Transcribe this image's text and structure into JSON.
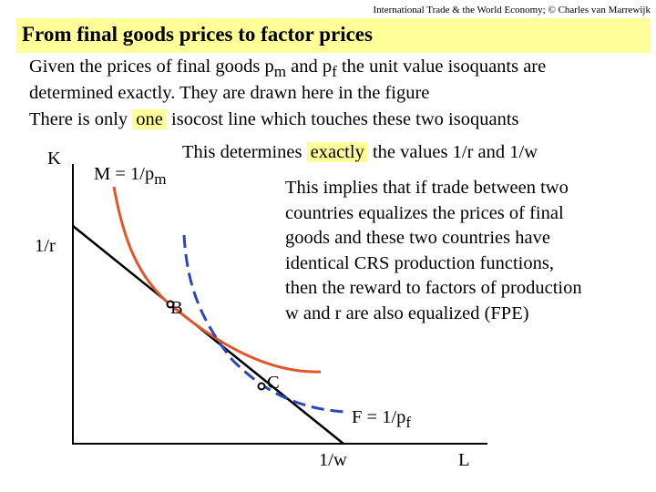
{
  "header": {
    "credit": "International Trade & the World Economy;  © Charles van Marrewijk",
    "title": "From final goods prices to factor prices"
  },
  "text": {
    "line1_a": "Given the prices of final goods p",
    "line1_sub1": "m",
    "line1_b": " and p",
    "line1_sub2": "f",
    "line1_c": " the unit value isoquants are",
    "line2": "determined exactly. They are drawn here in the figure",
    "line3_a": "There is only ",
    "line3_hl": "one",
    "line3_b": " isocost line which touches these two isoquants",
    "line4_a": "This determines ",
    "line4_hl": "exactly",
    "line4_b": " the values 1/r and 1/w",
    "para": [
      "This implies that if trade between two",
      "countries equalizes the prices of final",
      "goods and these two countries have",
      "identical CRS production functions,",
      "then the reward to factors of production",
      "w and r are also equalized (FPE)"
    ]
  },
  "diagram": {
    "k_axis_label": "K",
    "l_axis_label": "L",
    "intercept_k": "1/r",
    "intercept_l": "1/w",
    "m_label": "M = 1/p",
    "m_sub": "m",
    "f_label": "F = 1/p",
    "f_sub": "f",
    "point_b": "B",
    "point_c": "C",
    "colors": {
      "m_isoquant": "#e2572a",
      "f_isoquant": "#2d46b9",
      "isocost": "#000000",
      "highlight": "#ffff99"
    }
  }
}
